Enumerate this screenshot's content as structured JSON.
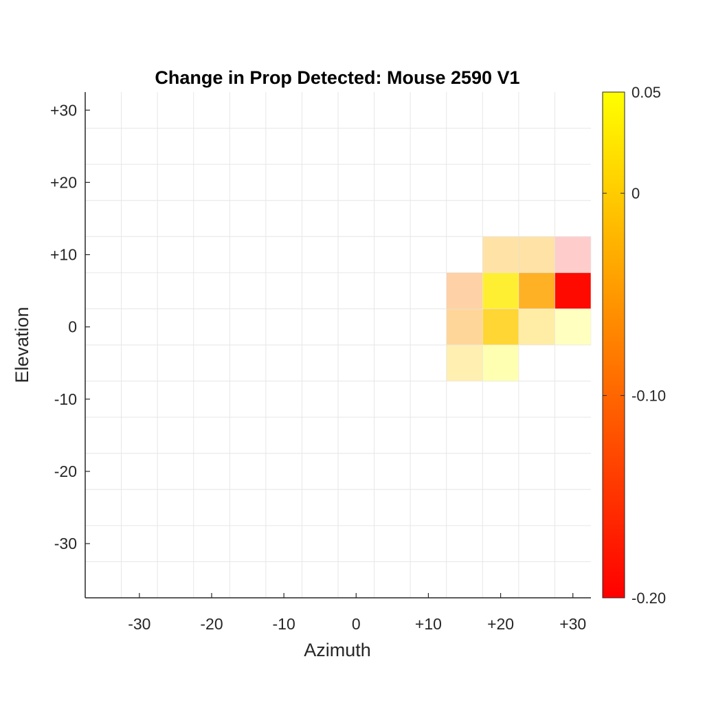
{
  "chart_data": {
    "type": "heatmap",
    "title": "Change in Prop Detected: Mouse 2590 V1",
    "xlabel": "Azimuth",
    "ylabel": "Elevation",
    "xlim": [
      -37.5,
      32.5
    ],
    "ylim": [
      -37.5,
      32.5
    ],
    "grid": true,
    "cell_size": 5,
    "x_ticks": [
      -30,
      -20,
      -10,
      0,
      10,
      20,
      30
    ],
    "x_tick_labels": [
      "-30",
      "-20",
      "-10",
      "0",
      "+10",
      "+20",
      "+30"
    ],
    "y_ticks": [
      30,
      20,
      10,
      0,
      -10,
      -20,
      -30
    ],
    "y_tick_labels": [
      "+30",
      "+20",
      "+10",
      "0",
      "-10",
      "-20",
      "-30"
    ],
    "colorbar": {
      "colormap": "autumn",
      "min": -0.2,
      "max": 0.05,
      "ticks": [
        0.05,
        0,
        -0.1,
        -0.2
      ],
      "tick_labels": [
        "0.05",
        "0",
        "-0.10",
        "-0.20"
      ],
      "color_low": "#ff0000",
      "color_high": "#ffff00"
    },
    "cells": [
      {
        "azimuth": 20,
        "elevation": 10,
        "value": -0.03,
        "alpha": 0.35
      },
      {
        "azimuth": 25,
        "elevation": 10,
        "value": -0.03,
        "alpha": 0.35
      },
      {
        "azimuth": 30,
        "elevation": 10,
        "value": -0.2,
        "alpha": 0.2
      },
      {
        "azimuth": 15,
        "elevation": 5,
        "value": -0.08,
        "alpha": 0.35
      },
      {
        "azimuth": 20,
        "elevation": 5,
        "value": 0.03,
        "alpha": 0.8
      },
      {
        "azimuth": 25,
        "elevation": 5,
        "value": -0.04,
        "alpha": 0.85
      },
      {
        "azimuth": 30,
        "elevation": 5,
        "value": -0.19,
        "alpha": 1.0
      },
      {
        "azimuth": 15,
        "elevation": 0,
        "value": -0.05,
        "alpha": 0.4
      },
      {
        "azimuth": 20,
        "elevation": 0,
        "value": 0.0,
        "alpha": 0.8
      },
      {
        "azimuth": 25,
        "elevation": 0,
        "value": 0.0,
        "alpha": 0.35
      },
      {
        "azimuth": 30,
        "elevation": 0,
        "value": 0.05,
        "alpha": 0.25
      },
      {
        "azimuth": 15,
        "elevation": -5,
        "value": 0.0,
        "alpha": 0.3
      },
      {
        "azimuth": 20,
        "elevation": -5,
        "value": 0.05,
        "alpha": 0.3
      }
    ]
  }
}
